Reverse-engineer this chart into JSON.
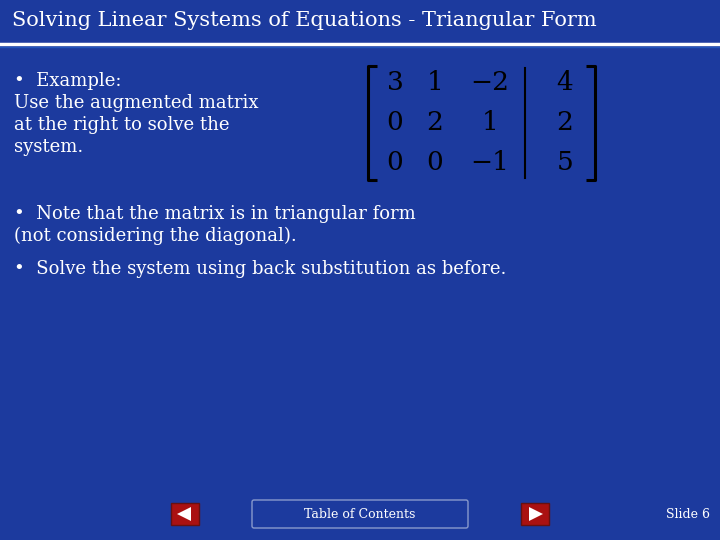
{
  "title": "Solving Linear Systems of Equations - Triangular Form",
  "bg_color": "#1c3a9e",
  "title_bg_color": "#1c3a9e",
  "title_color": "#ffffff",
  "text_color": "#ffffff",
  "bullet1_line1": "•  Example:",
  "bullet1_line2": "Use the augmented matrix",
  "bullet1_line3": "at the right to solve the",
  "bullet1_line4": "system.",
  "bullet2_line1": "•  Note that the matrix is in triangular form",
  "bullet2_line2": "(not considering the diagonal).",
  "bullet3": "•  Solve the system using back substitution as before.",
  "matrix": [
    [
      "3",
      "1",
      "−2",
      "4"
    ],
    [
      "0",
      "2",
      "1",
      "2"
    ],
    [
      "0",
      "0",
      "−1",
      "5"
    ]
  ],
  "footer_text": "Table of Contents",
  "slide_num": "Slide 6",
  "divider_color": "#ffffff",
  "footer_btn_color": "#aa1111",
  "matrix_bracket_color": "#000000",
  "matrix_text_color": "#000000",
  "matrix_divider_color": "#000000"
}
